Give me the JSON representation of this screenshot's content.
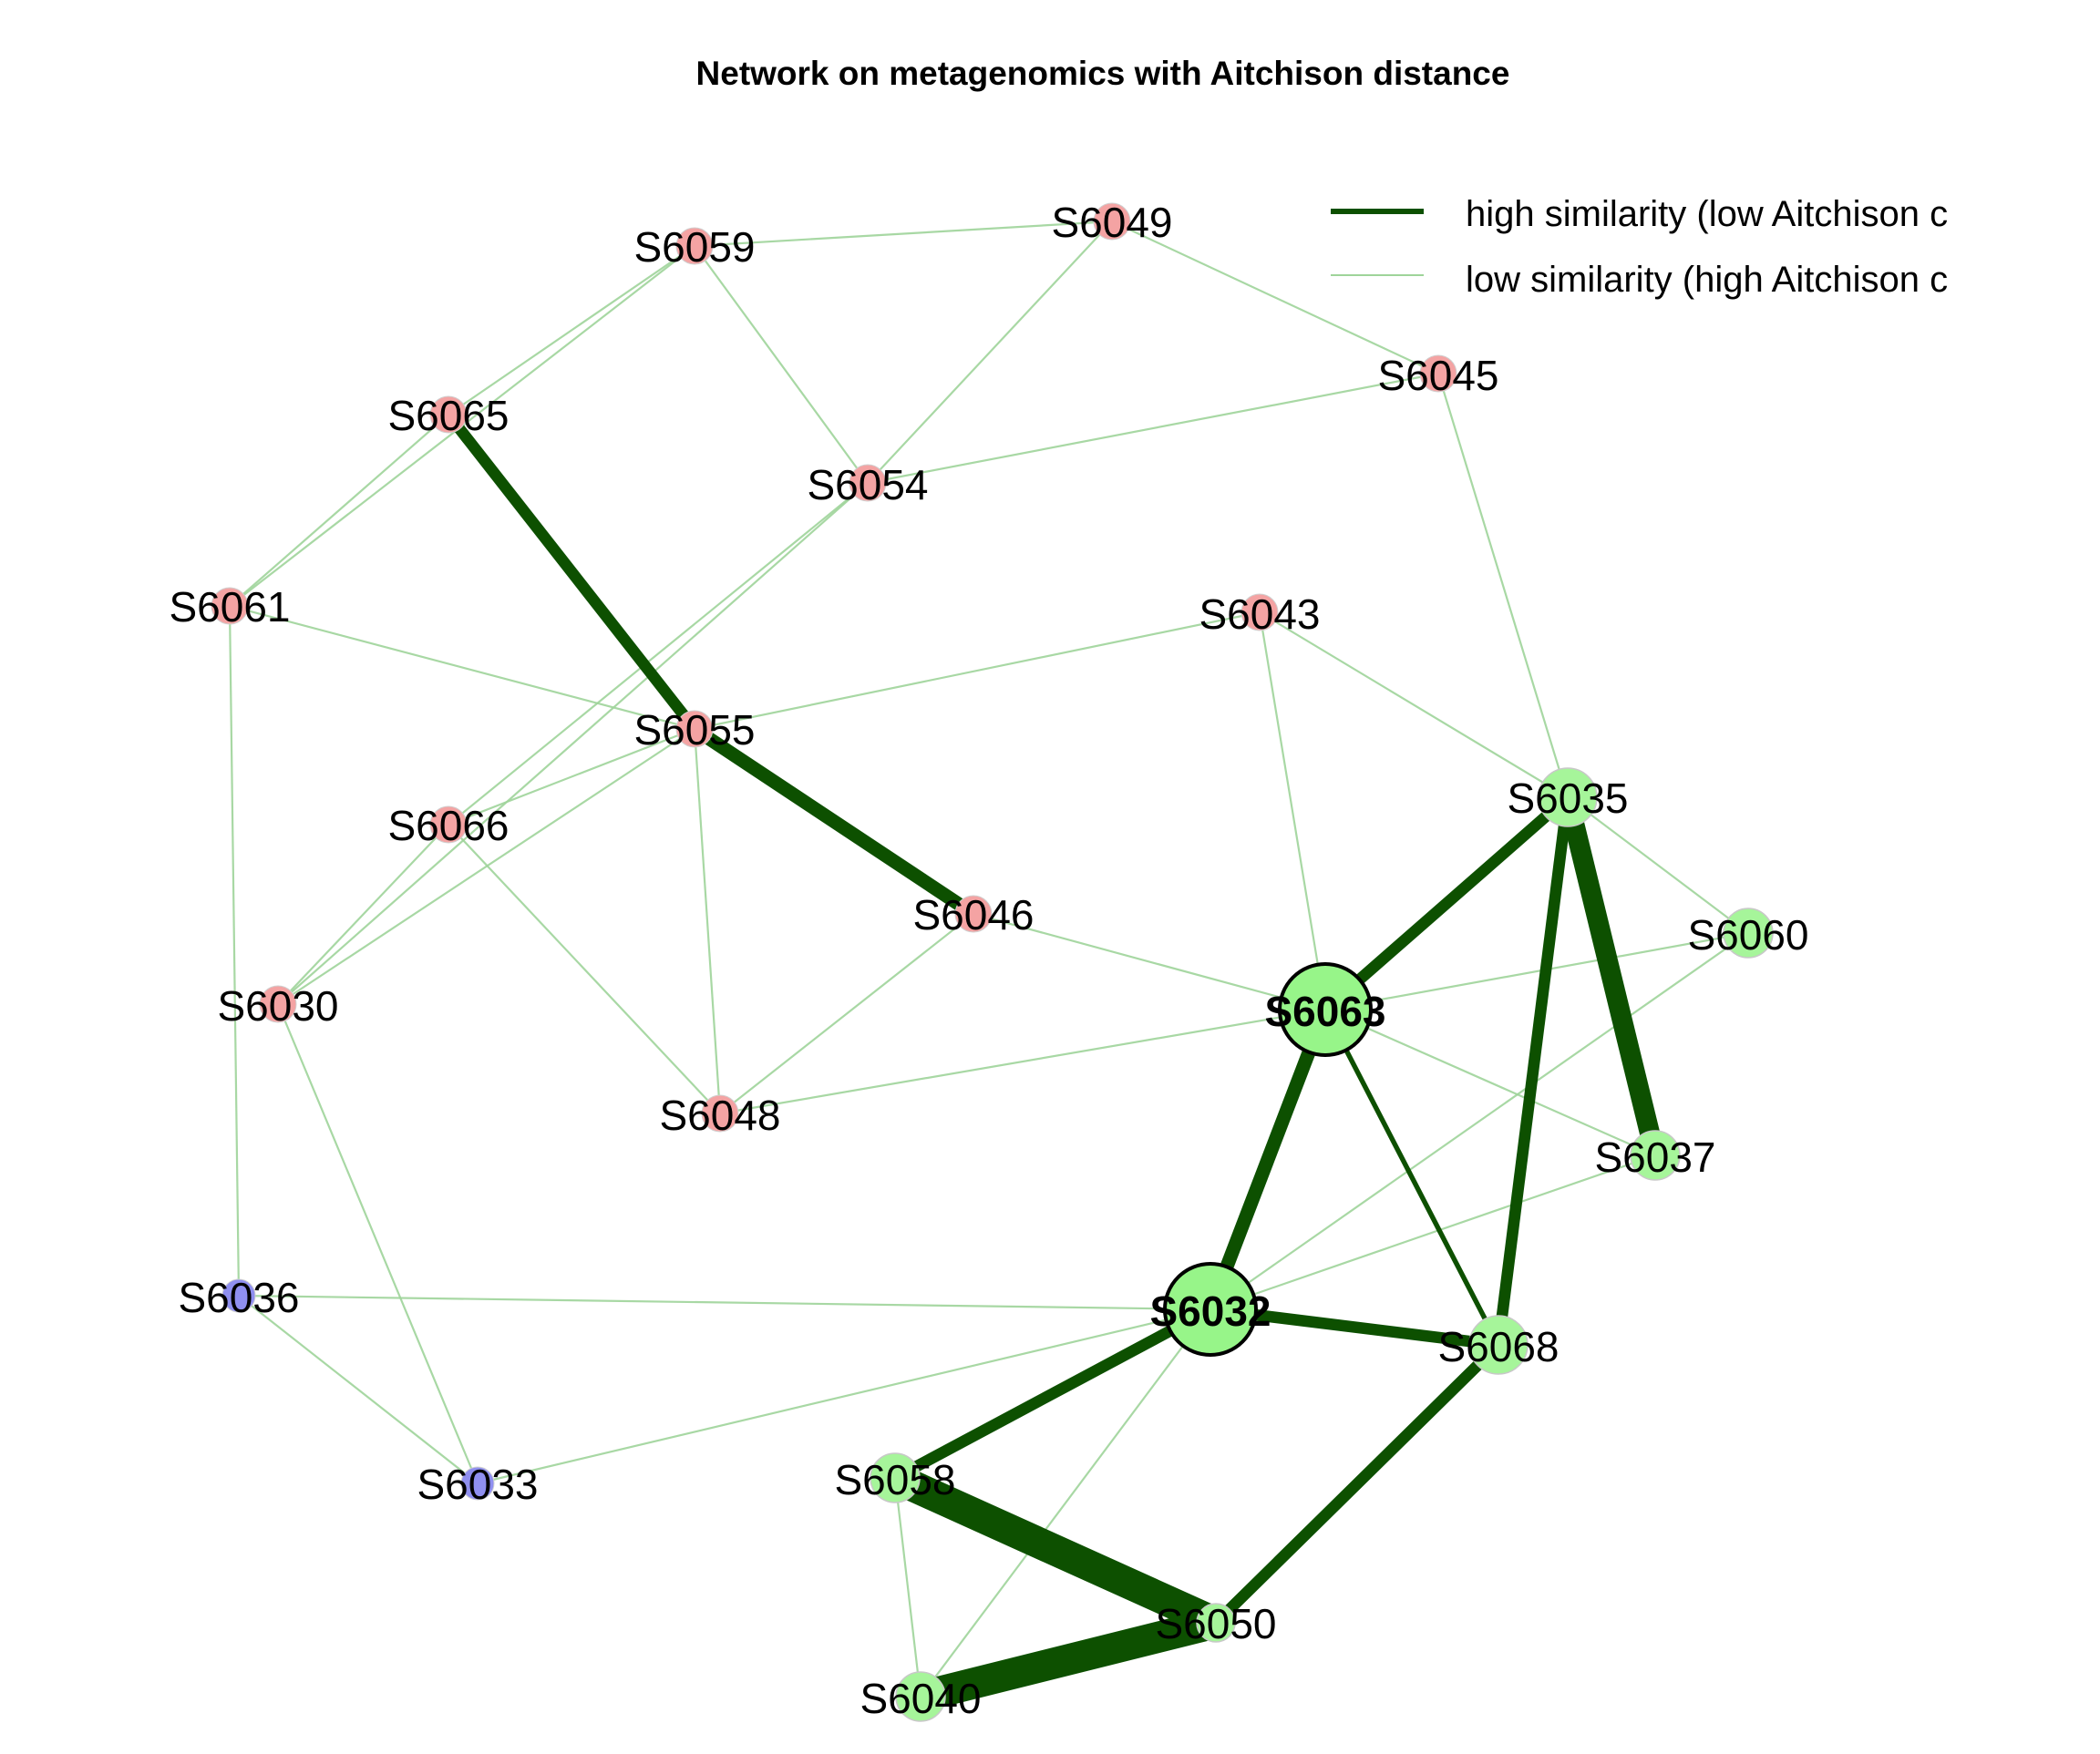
{
  "title": "Network on metagenomics with Aitchison distance",
  "legend": [
    {
      "label": "high similarity (low Aitchison c",
      "color": "#0d5000",
      "kind": "high"
    },
    {
      "label": "low similarity (high Aitchison c",
      "color": "#9fd49a",
      "kind": "low"
    }
  ],
  "colors": {
    "strong_edge": "#0d5000",
    "weak_edge": "#9fd49a",
    "red_group": "#f4a3a3",
    "green_group": "#a6f59a",
    "blue_group": "#8f8ff0",
    "hub_fill": "#97f589",
    "hub_border": "#000000"
  },
  "nodes": [
    {
      "id": "S6059",
      "group": "red"
    },
    {
      "id": "S6049",
      "group": "red"
    },
    {
      "id": "S6045",
      "group": "red"
    },
    {
      "id": "S6065",
      "group": "red"
    },
    {
      "id": "S6054",
      "group": "red"
    },
    {
      "id": "S6061",
      "group": "red"
    },
    {
      "id": "S6043",
      "group": "red"
    },
    {
      "id": "S6055",
      "group": "red"
    },
    {
      "id": "S6066",
      "group": "red"
    },
    {
      "id": "S6046",
      "group": "red"
    },
    {
      "id": "S6030",
      "group": "red"
    },
    {
      "id": "S6048",
      "group": "red"
    },
    {
      "id": "S6036",
      "group": "blue"
    },
    {
      "id": "S6033",
      "group": "blue"
    },
    {
      "id": "S6035",
      "group": "green",
      "size": "large"
    },
    {
      "id": "S6060",
      "group": "green",
      "size": "medium"
    },
    {
      "id": "S6063",
      "group": "green",
      "hub": true
    },
    {
      "id": "S6037",
      "group": "green",
      "size": "medium"
    },
    {
      "id": "S6032",
      "group": "green",
      "hub": true
    },
    {
      "id": "S6068",
      "group": "green",
      "size": "large"
    },
    {
      "id": "S6058",
      "group": "green",
      "size": "medium"
    },
    {
      "id": "S6050",
      "group": "green",
      "size": "small"
    },
    {
      "id": "S6040",
      "group": "green",
      "size": "medium"
    }
  ],
  "edges": [
    {
      "source": "S6059",
      "target": "S6049",
      "similarity": "low"
    },
    {
      "source": "S6059",
      "target": "S6065",
      "similarity": "low"
    },
    {
      "source": "S6059",
      "target": "S6061",
      "similarity": "low"
    },
    {
      "source": "S6059",
      "target": "S6054",
      "similarity": "low"
    },
    {
      "source": "S6049",
      "target": "S6045",
      "similarity": "low"
    },
    {
      "source": "S6049",
      "target": "S6054",
      "similarity": "low"
    },
    {
      "source": "S6045",
      "target": "S6054",
      "similarity": "low"
    },
    {
      "source": "S6045",
      "target": "S6035",
      "similarity": "low"
    },
    {
      "source": "S6065",
      "target": "S6061",
      "similarity": "low"
    },
    {
      "source": "S6065",
      "target": "S6055",
      "similarity": "high",
      "strength": 4
    },
    {
      "source": "S6054",
      "target": "S6066",
      "similarity": "low"
    },
    {
      "source": "S6054",
      "target": "S6030",
      "similarity": "low"
    },
    {
      "source": "S6061",
      "target": "S6055",
      "similarity": "low"
    },
    {
      "source": "S6061",
      "target": "S6036",
      "similarity": "low"
    },
    {
      "source": "S6043",
      "target": "S6055",
      "similarity": "low"
    },
    {
      "source": "S6043",
      "target": "S6063",
      "similarity": "low"
    },
    {
      "source": "S6043",
      "target": "S6035",
      "similarity": "low"
    },
    {
      "source": "S6055",
      "target": "S6066",
      "similarity": "low"
    },
    {
      "source": "S6055",
      "target": "S6030",
      "similarity": "low"
    },
    {
      "source": "S6055",
      "target": "S6048",
      "similarity": "low"
    },
    {
      "source": "S6055",
      "target": "S6046",
      "similarity": "high",
      "strength": 5
    },
    {
      "source": "S6066",
      "target": "S6030",
      "similarity": "low"
    },
    {
      "source": "S6066",
      "target": "S6048",
      "similarity": "low"
    },
    {
      "source": "S6046",
      "target": "S6063",
      "similarity": "low"
    },
    {
      "source": "S6046",
      "target": "S6048",
      "similarity": "low"
    },
    {
      "source": "S6030",
      "target": "S6033",
      "similarity": "low"
    },
    {
      "source": "S6048",
      "target": "S6063",
      "similarity": "low"
    },
    {
      "source": "S6036",
      "target": "S6033",
      "similarity": "low"
    },
    {
      "source": "S6036",
      "target": "S6032",
      "similarity": "low"
    },
    {
      "source": "S6033",
      "target": "S6032",
      "similarity": "low"
    },
    {
      "source": "S6035",
      "target": "S6063",
      "similarity": "high",
      "strength": 4
    },
    {
      "source": "S6035",
      "target": "S6068",
      "similarity": "high",
      "strength": 4
    },
    {
      "source": "S6035",
      "target": "S6037",
      "similarity": "high",
      "strength": 8
    },
    {
      "source": "S6035",
      "target": "S6060",
      "similarity": "low"
    },
    {
      "source": "S6060",
      "target": "S6063",
      "similarity": "low"
    },
    {
      "source": "S6060",
      "target": "S6032",
      "similarity": "low"
    },
    {
      "source": "S6063",
      "target": "S6037",
      "similarity": "low"
    },
    {
      "source": "S6063",
      "target": "S6032",
      "similarity": "high",
      "strength": 5
    },
    {
      "source": "S6063",
      "target": "S6068",
      "similarity": "high",
      "strength": 1
    },
    {
      "source": "S6037",
      "target": "S6032",
      "similarity": "low"
    },
    {
      "source": "S6032",
      "target": "S6068",
      "similarity": "high",
      "strength": 4
    },
    {
      "source": "S6032",
      "target": "S6058",
      "similarity": "high",
      "strength": 4
    },
    {
      "source": "S6032",
      "target": "S6040",
      "similarity": "low"
    },
    {
      "source": "S6068",
      "target": "S6050",
      "similarity": "high",
      "strength": 4
    },
    {
      "source": "S6058",
      "target": "S6050",
      "similarity": "high",
      "strength": 13
    },
    {
      "source": "S6058",
      "target": "S6040",
      "similarity": "low"
    },
    {
      "source": "S6050",
      "target": "S6040",
      "similarity": "high",
      "strength": 13
    }
  ]
}
